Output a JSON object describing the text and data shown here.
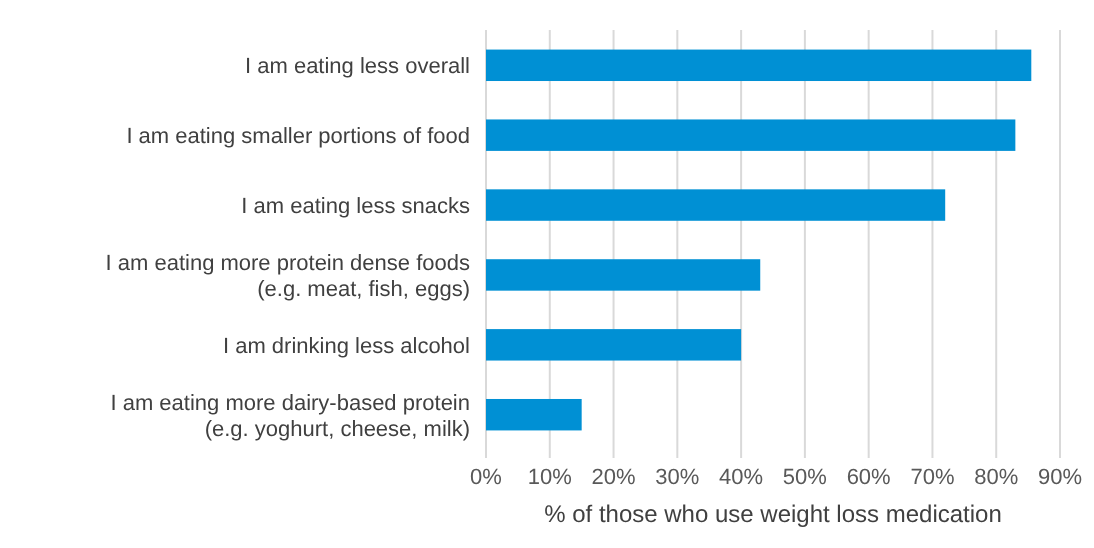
{
  "chart_data": {
    "type": "bar",
    "orientation": "horizontal",
    "xlabel": "% of those who use weight loss medication",
    "categories": [
      "I am eating less overall",
      "I am eating smaller portions of food",
      "I am eating less snacks",
      "I am eating more protein dense foods (e.g. meat, fish, eggs)",
      "I am drinking less alcohol",
      "I am eating more dairy-based protein (e.g. yoghurt, cheese, milk)"
    ],
    "values": [
      85.5,
      83,
      72,
      43,
      40,
      15
    ],
    "color": "#0090d4",
    "xlim": [
      0,
      90
    ],
    "xticks": [
      {
        "value": 0,
        "label": "0%"
      },
      {
        "value": 10,
        "label": "10%"
      },
      {
        "value": 20,
        "label": "20%"
      },
      {
        "value": 30,
        "label": "30%"
      },
      {
        "value": 40,
        "label": "40%"
      },
      {
        "value": 50,
        "label": "50%"
      },
      {
        "value": 60,
        "label": "60%"
      },
      {
        "value": 70,
        "label": "70%"
      },
      {
        "value": 80,
        "label": "80%"
      },
      {
        "value": 90,
        "label": "90%"
      }
    ],
    "grid": "x"
  }
}
